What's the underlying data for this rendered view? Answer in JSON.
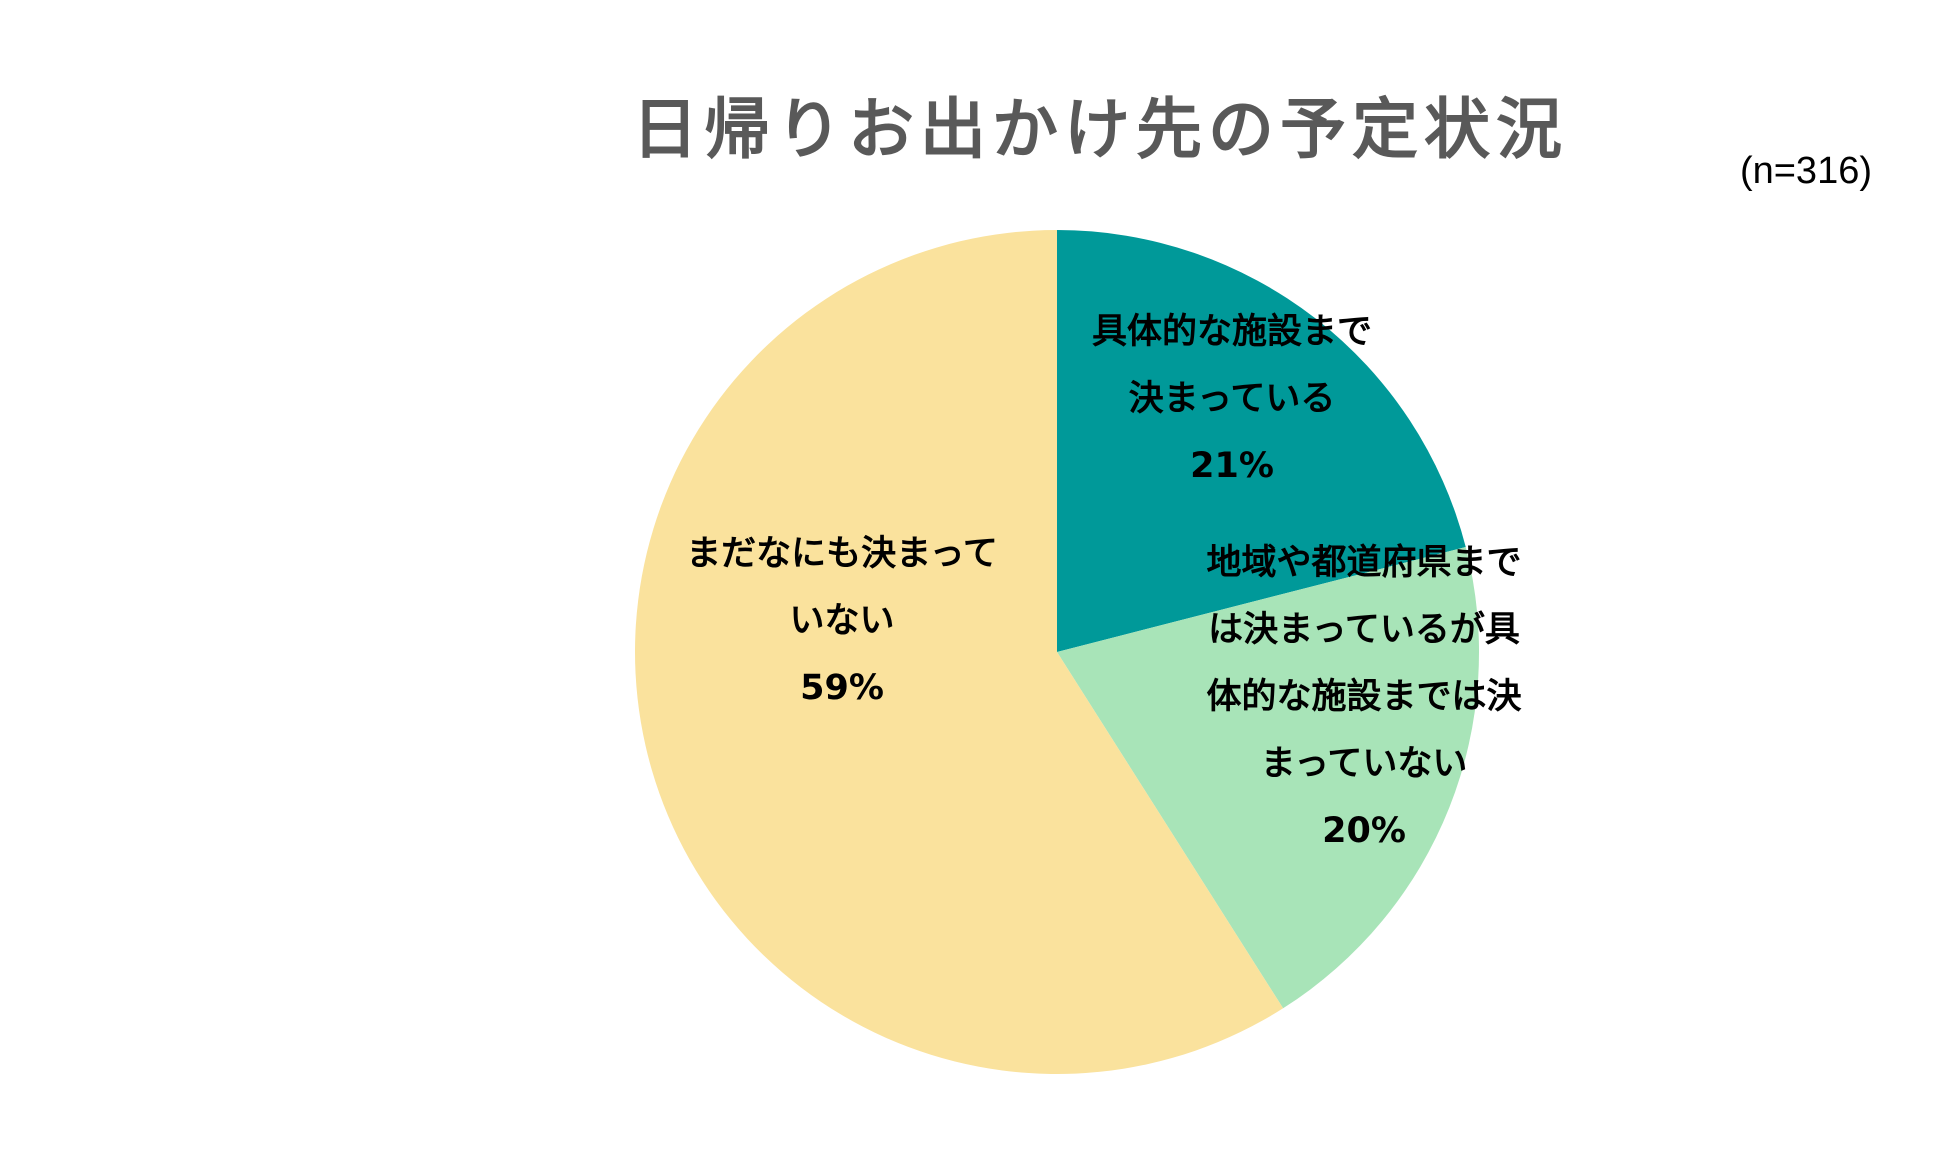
{
  "chart_data": {
    "type": "pie",
    "title": "日帰りお出かけ先の予定状況",
    "note": "(n=316)",
    "slices": [
      {
        "label_lines": [
          "具体的な施設まで",
          "決まっている"
        ],
        "value": 21,
        "value_label": "21%",
        "color": "#009999"
      },
      {
        "label_lines": [
          "地域や都道府県まで",
          "は決まっているが具",
          "体的な施設までは決",
          "まっていない"
        ],
        "value": 20,
        "value_label": "20%",
        "color": "#A8E4B8"
      },
      {
        "label_lines": [
          "まだなにも決まって",
          "いない"
        ],
        "value": 59,
        "value_label": "59%",
        "color": "#FAE29D"
      }
    ],
    "start_angle_deg": 0,
    "direction": "clockwise",
    "legend": "none"
  }
}
